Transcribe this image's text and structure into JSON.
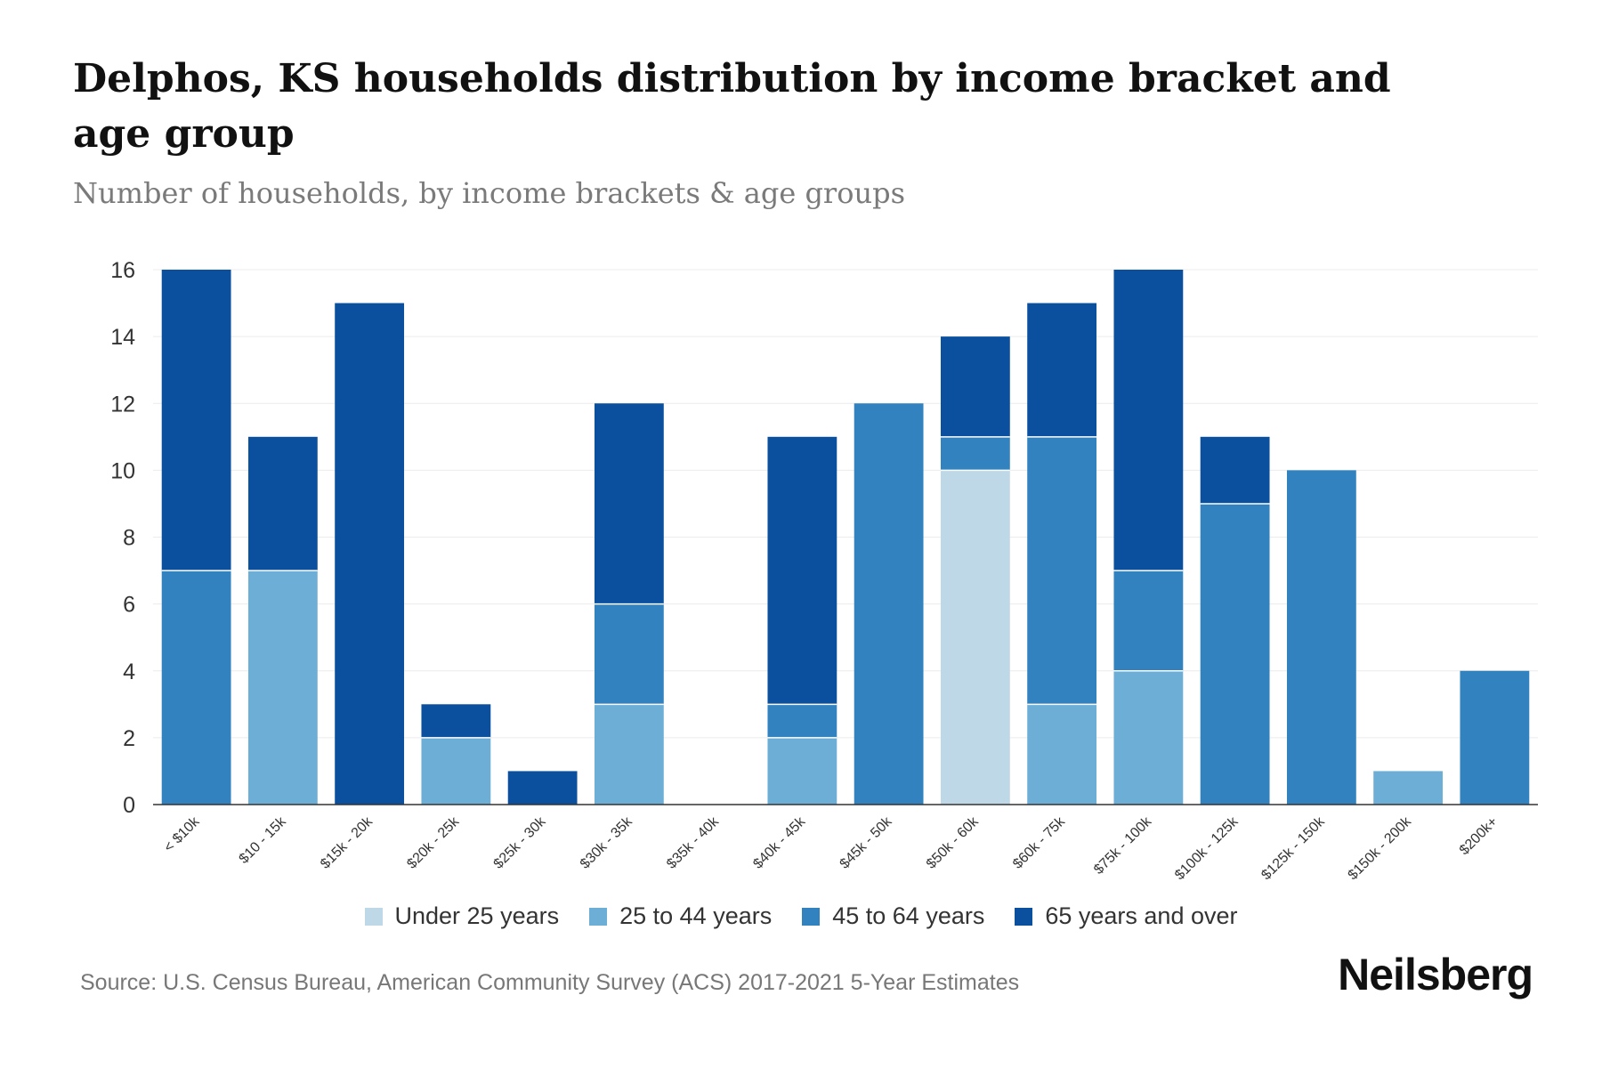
{
  "header": {
    "title": "Delphos, KS households distribution by income bracket and age group",
    "subtitle": "Number of households, by income brackets & age groups"
  },
  "footer": {
    "source": "Source: U.S. Census Bureau, American Community Survey (ACS) 2017-2021 5-Year Estimates",
    "brand": "Neilsberg"
  },
  "chart_data": {
    "type": "bar",
    "stacked": true,
    "title": "Delphos, KS households distribution by income bracket and age group",
    "subtitle": "Number of households, by income brackets & age groups",
    "xlabel": "",
    "ylabel": "",
    "ylim": [
      0,
      16
    ],
    "yticks": [
      0,
      2,
      4,
      6,
      8,
      10,
      12,
      14,
      16
    ],
    "grid": true,
    "legend_position": "bottom",
    "categories": [
      "< $10k",
      "$10 - 15k",
      "$15k - 20k",
      "$20k - 25k",
      "$25k - 30k",
      "$30k - 35k",
      "$35k - 40k",
      "$40k - 45k",
      "$45k - 50k",
      "$50k - 60k",
      "$60k - 75k",
      "$75k - 100k",
      "$100k - 125k",
      "$125k - 150k",
      "$150k - 200k",
      "$200k+"
    ],
    "series": [
      {
        "name": "Under 25 years",
        "color": "#bed8e8",
        "values": [
          0,
          0,
          0,
          0,
          0,
          0,
          0,
          0,
          0,
          10,
          0,
          0,
          0,
          0,
          0,
          0
        ]
      },
      {
        "name": "25 to 44 years",
        "color": "#6daed7",
        "values": [
          0,
          7,
          0,
          2,
          0,
          3,
          0,
          2,
          0,
          0,
          3,
          4,
          0,
          0,
          1,
          0
        ]
      },
      {
        "name": "45 to 64 years",
        "color": "#3282bf",
        "values": [
          7,
          0,
          0,
          0,
          0,
          3,
          0,
          1,
          12,
          1,
          8,
          3,
          9,
          10,
          0,
          4
        ]
      },
      {
        "name": "65 years and over",
        "color": "#0a509e",
        "values": [
          9,
          4,
          15,
          1,
          1,
          6,
          0,
          8,
          0,
          3,
          4,
          9,
          2,
          0,
          0,
          0
        ]
      }
    ]
  }
}
